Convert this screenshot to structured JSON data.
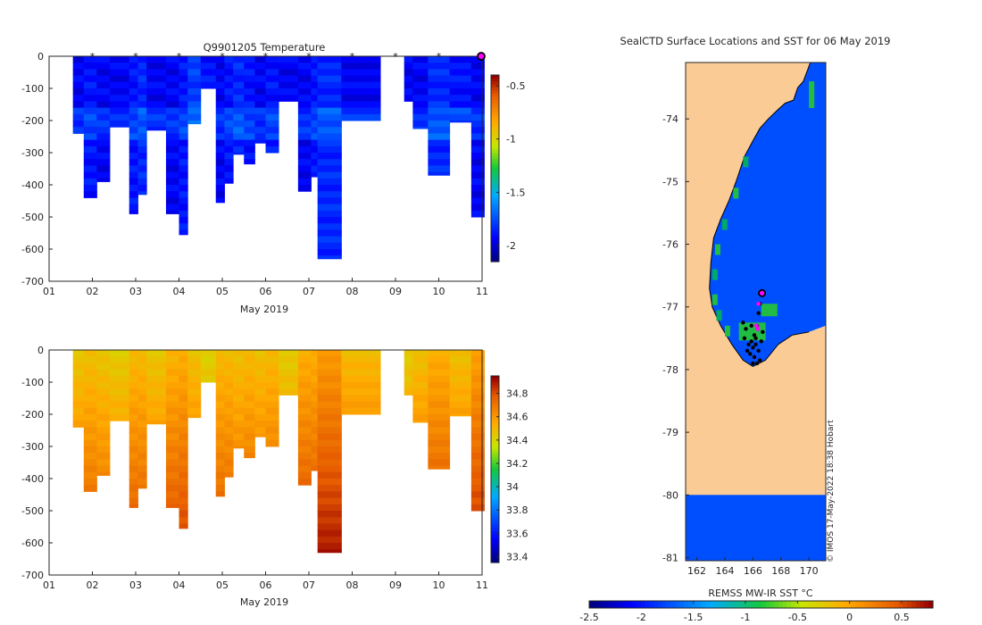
{
  "chart_data": [
    {
      "type": "heatmap",
      "title": "Q9901205  Temperature",
      "xlabel": "May 2019",
      "ylabel": "",
      "x_ticks": [
        "01",
        "02",
        "03",
        "04",
        "05",
        "06",
        "07",
        "08",
        "09",
        "10",
        "11"
      ],
      "xlim": [
        1,
        11
      ],
      "y_ticks": [
        0,
        -100,
        -200,
        -300,
        -400,
        -500,
        -600,
        -700
      ],
      "ylim": [
        -700,
        0
      ],
      "colorbar": {
        "ticks": [
          "-0.5",
          "-1",
          "-1.5",
          "-2"
        ],
        "tick_values": [
          -0.5,
          -1,
          -1.5,
          -2
        ],
        "range": [
          -2.15,
          -0.4
        ]
      },
      "surface_markers": [
        2,
        3,
        4,
        5,
        6,
        7,
        8,
        9,
        10
      ],
      "last_profile_marker": 11,
      "profiles": [
        {
          "x0": 1.55,
          "x1": 1.8,
          "depth": 240,
          "value": -1.95
        },
        {
          "x0": 1.8,
          "x1": 2.1,
          "depth": 440,
          "value": -1.9
        },
        {
          "x0": 2.1,
          "x1": 2.4,
          "depth": 390,
          "value": -1.95
        },
        {
          "x0": 2.4,
          "x1": 2.85,
          "depth": 220,
          "value": -1.95
        },
        {
          "x0": 2.85,
          "x1": 3.05,
          "depth": 490,
          "value": -1.9
        },
        {
          "x0": 3.05,
          "x1": 3.25,
          "depth": 430,
          "value": -1.85
        },
        {
          "x0": 3.25,
          "x1": 3.7,
          "depth": 230,
          "value": -1.95
        },
        {
          "x0": 3.7,
          "x1": 4.0,
          "depth": 490,
          "value": -1.95
        },
        {
          "x0": 4.0,
          "x1": 4.2,
          "depth": 555,
          "value": -1.9
        },
        {
          "x0": 4.2,
          "x1": 4.5,
          "depth": 210,
          "value": -1.8
        },
        {
          "x0": 4.5,
          "x1": 4.85,
          "depth": 100,
          "value": -1.9
        },
        {
          "x0": 4.85,
          "x1": 5.05,
          "depth": 455,
          "value": -1.95
        },
        {
          "x0": 5.05,
          "x1": 5.25,
          "depth": 395,
          "value": -1.9
        },
        {
          "x0": 5.25,
          "x1": 5.5,
          "depth": 305,
          "value": -1.85
        },
        {
          "x0": 5.5,
          "x1": 5.75,
          "depth": 335,
          "value": -1.9
        },
        {
          "x0": 5.75,
          "x1": 6.0,
          "depth": 270,
          "value": -1.95
        },
        {
          "x0": 6.0,
          "x1": 6.3,
          "depth": 300,
          "value": -1.9
        },
        {
          "x0": 6.3,
          "x1": 6.75,
          "depth": 140,
          "value": -1.95
        },
        {
          "x0": 6.75,
          "x1": 7.05,
          "depth": 420,
          "value": -1.95
        },
        {
          "x0": 7.05,
          "x1": 7.2,
          "depth": 375,
          "value": -1.9
        },
        {
          "x0": 7.2,
          "x1": 7.75,
          "depth": 630,
          "value": -1.85
        },
        {
          "x0": 7.75,
          "x1": 8.65,
          "depth": 200,
          "value": -1.95
        },
        {
          "x0": 9.2,
          "x1": 9.4,
          "depth": 140,
          "value": -1.95
        },
        {
          "x0": 9.4,
          "x1": 9.75,
          "depth": 225,
          "value": -1.95
        },
        {
          "x0": 9.75,
          "x1": 10.25,
          "depth": 370,
          "value": -1.85
        },
        {
          "x0": 10.25,
          "x1": 10.75,
          "depth": 205,
          "value": -1.9
        },
        {
          "x0": 10.75,
          "x1": 11.05,
          "depth": 500,
          "value": -1.95
        }
      ]
    },
    {
      "type": "heatmap",
      "title": "",
      "xlabel": "May 2019",
      "ylabel": "",
      "x_ticks": [
        "01",
        "02",
        "03",
        "04",
        "05",
        "06",
        "07",
        "08",
        "09",
        "10",
        "11"
      ],
      "xlim": [
        1,
        11
      ],
      "y_ticks": [
        0,
        -100,
        -200,
        -300,
        -400,
        -500,
        -600,
        -700
      ],
      "ylim": [
        -700,
        0
      ],
      "colorbar": {
        "ticks": [
          "34.8",
          "34.6",
          "34.4",
          "34.2",
          "34",
          "33.8",
          "33.6",
          "33.4"
        ],
        "tick_values": [
          34.8,
          34.6,
          34.4,
          34.2,
          34.0,
          33.8,
          33.6,
          33.4
        ],
        "range": [
          33.35,
          34.95
        ]
      },
      "profiles": [
        {
          "x0": 1.55,
          "x1": 1.8,
          "depth": 240,
          "value": 34.58
        },
        {
          "x0": 1.8,
          "x1": 2.1,
          "depth": 440,
          "value": 34.6
        },
        {
          "x0": 2.1,
          "x1": 2.4,
          "depth": 390,
          "value": 34.58
        },
        {
          "x0": 2.4,
          "x1": 2.85,
          "depth": 220,
          "value": 34.56
        },
        {
          "x0": 2.85,
          "x1": 3.05,
          "depth": 490,
          "value": 34.62
        },
        {
          "x0": 3.05,
          "x1": 3.25,
          "depth": 430,
          "value": 34.62
        },
        {
          "x0": 3.25,
          "x1": 3.7,
          "depth": 230,
          "value": 34.58
        },
        {
          "x0": 3.7,
          "x1": 4.0,
          "depth": 490,
          "value": 34.64
        },
        {
          "x0": 4.0,
          "x1": 4.2,
          "depth": 555,
          "value": 34.66
        },
        {
          "x0": 4.2,
          "x1": 4.5,
          "depth": 210,
          "value": 34.6
        },
        {
          "x0": 4.5,
          "x1": 4.85,
          "depth": 100,
          "value": 34.54
        },
        {
          "x0": 4.85,
          "x1": 5.05,
          "depth": 455,
          "value": 34.62
        },
        {
          "x0": 5.05,
          "x1": 5.25,
          "depth": 395,
          "value": 34.62
        },
        {
          "x0": 5.25,
          "x1": 5.5,
          "depth": 305,
          "value": 34.6
        },
        {
          "x0": 5.5,
          "x1": 5.75,
          "depth": 335,
          "value": 34.62
        },
        {
          "x0": 5.75,
          "x1": 6.0,
          "depth": 270,
          "value": 34.6
        },
        {
          "x0": 6.0,
          "x1": 6.3,
          "depth": 300,
          "value": 34.62
        },
        {
          "x0": 6.3,
          "x1": 6.75,
          "depth": 140,
          "value": 34.56
        },
        {
          "x0": 6.75,
          "x1": 7.05,
          "depth": 420,
          "value": 34.66
        },
        {
          "x0": 7.05,
          "x1": 7.2,
          "depth": 375,
          "value": 34.66
        },
        {
          "x0": 7.2,
          "x1": 7.75,
          "depth": 630,
          "value": 34.72
        },
        {
          "x0": 7.75,
          "x1": 8.65,
          "depth": 200,
          "value": 34.62
        },
        {
          "x0": 9.2,
          "x1": 9.4,
          "depth": 140,
          "value": 34.56
        },
        {
          "x0": 9.4,
          "x1": 9.75,
          "depth": 225,
          "value": 34.6
        },
        {
          "x0": 9.75,
          "x1": 10.25,
          "depth": 370,
          "value": 34.66
        },
        {
          "x0": 10.25,
          "x1": 10.75,
          "depth": 205,
          "value": 34.6
        },
        {
          "x0": 10.75,
          "x1": 11.05,
          "depth": 500,
          "value": 34.7
        }
      ]
    },
    {
      "type": "heatmap",
      "title": "SealCTD Surface Locations and SST for 06 May 2019",
      "xlabel": "REMSS MW-IR SST °C",
      "x_ticks": [
        "162",
        "164",
        "166",
        "168",
        "170"
      ],
      "x_tick_values": [
        162,
        164,
        166,
        168,
        170
      ],
      "xlim": [
        161.2,
        171.2
      ],
      "y_ticks": [
        "-74",
        "-75",
        "-76",
        "-77",
        "-78",
        "-79",
        "-80",
        "-81"
      ],
      "y_tick_values": [
        -74,
        -75,
        -76,
        -77,
        -78,
        -79,
        -80,
        -81
      ],
      "ylim": [
        -81.05,
        -73.1
      ],
      "colorbar": {
        "ticks": [
          "-2.5",
          "-2",
          "-1.5",
          "-1",
          "-0.5",
          "0",
          "0.5"
        ],
        "tick_values": [
          -2.5,
          -2,
          -1.5,
          -1,
          -0.5,
          0,
          0.5
        ],
        "range": [
          -2.5,
          0.8
        ]
      },
      "sst_value": -1.75,
      "land_cutoff_lat": -80,
      "track_points": [
        {
          "lon": 166.6,
          "lat": -76.78
        },
        {
          "lon": 166.5,
          "lat": -76.95
        },
        {
          "lon": 166.4,
          "lat": -77.1
        },
        {
          "lon": 166.3,
          "lat": -77.3
        },
        {
          "lon": 166.1,
          "lat": -77.45
        },
        {
          "lon": 165.9,
          "lat": -77.55
        },
        {
          "lon": 166.2,
          "lat": -77.6
        },
        {
          "lon": 166.0,
          "lat": -77.65
        },
        {
          "lon": 165.7,
          "lat": -77.6
        },
        {
          "lon": 166.4,
          "lat": -77.7
        },
        {
          "lon": 165.5,
          "lat": -77.35
        },
        {
          "lon": 165.3,
          "lat": -77.25
        },
        {
          "lon": 166.6,
          "lat": -77.55
        },
        {
          "lon": 166.1,
          "lat": -77.8
        },
        {
          "lon": 166.3,
          "lat": -77.9
        },
        {
          "lon": 165.8,
          "lat": -77.75
        },
        {
          "lon": 166.5,
          "lat": -77.85
        },
        {
          "lon": 166.0,
          "lat": -77.9
        },
        {
          "lon": 165.6,
          "lat": -77.7
        },
        {
          "lon": 166.2,
          "lat": -77.5
        },
        {
          "lon": 165.4,
          "lat": -77.5
        },
        {
          "lon": 166.7,
          "lat": -77.4
        },
        {
          "lon": 165.9,
          "lat": -77.3
        }
      ],
      "magenta_points": [
        {
          "lon": 166.25,
          "lat": -77.3
        },
        {
          "lon": 166.35,
          "lat": -77.35
        },
        {
          "lon": 166.4,
          "lat": -76.95
        }
      ],
      "current_position": {
        "lon": 166.65,
        "lat": -76.78
      },
      "credit": "© IMOS 17-May-2022 18:38 Hobart"
    }
  ]
}
